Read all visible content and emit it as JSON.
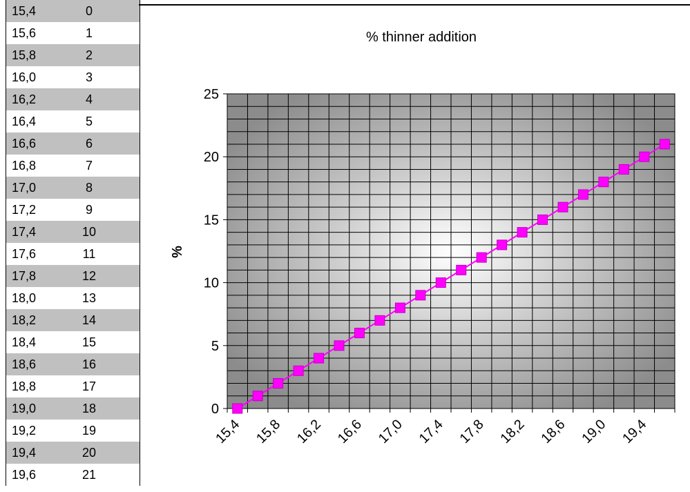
{
  "table": {
    "rows": [
      {
        "x": "15,4",
        "y": "0"
      },
      {
        "x": "15,6",
        "y": "1"
      },
      {
        "x": "15,8",
        "y": "2"
      },
      {
        "x": "16,0",
        "y": "3"
      },
      {
        "x": "16,2",
        "y": "4"
      },
      {
        "x": "16,4",
        "y": "5"
      },
      {
        "x": "16,6",
        "y": "6"
      },
      {
        "x": "16,8",
        "y": "7"
      },
      {
        "x": "17,0",
        "y": "8"
      },
      {
        "x": "17,2",
        "y": "9"
      },
      {
        "x": "17,4",
        "y": "10"
      },
      {
        "x": "17,6",
        "y": "11"
      },
      {
        "x": "17,8",
        "y": "12"
      },
      {
        "x": "18,0",
        "y": "13"
      },
      {
        "x": "18,2",
        "y": "14"
      },
      {
        "x": "18,4",
        "y": "15"
      },
      {
        "x": "18,6",
        "y": "16"
      },
      {
        "x": "18,8",
        "y": "17"
      },
      {
        "x": "19,0",
        "y": "18"
      },
      {
        "x": "19,2",
        "y": "19"
      },
      {
        "x": "19,4",
        "y": "20"
      },
      {
        "x": "19,6",
        "y": "21"
      }
    ]
  },
  "chart_data": {
    "type": "line",
    "title": "% thinner addition",
    "xlabel": "",
    "ylabel": "%",
    "x": [
      15.4,
      15.6,
      15.8,
      16.0,
      16.2,
      16.4,
      16.6,
      16.8,
      17.0,
      17.2,
      17.4,
      17.6,
      17.8,
      18.0,
      18.2,
      18.4,
      18.6,
      18.8,
      19.0,
      19.2,
      19.4,
      19.6
    ],
    "series": [
      {
        "values": [
          0,
          1,
          2,
          3,
          4,
          5,
          6,
          7,
          8,
          9,
          10,
          11,
          12,
          13,
          14,
          15,
          16,
          17,
          18,
          19,
          20,
          21
        ]
      }
    ],
    "x_tick_labels": [
      "15,4",
      "15,8",
      "16,2",
      "16,6",
      "17,0",
      "17,4",
      "17,8",
      "18,2",
      "18,6",
      "19,0",
      "19,4"
    ],
    "y_ticks": [
      "0",
      "5",
      "10",
      "15",
      "20",
      "25"
    ],
    "ylim": [
      0,
      25
    ],
    "grid": true,
    "legend": "none",
    "series_color": "#ff00ff",
    "plot_gradient_center": "#ffffff",
    "plot_gradient_edge": "#8c8c8c"
  }
}
